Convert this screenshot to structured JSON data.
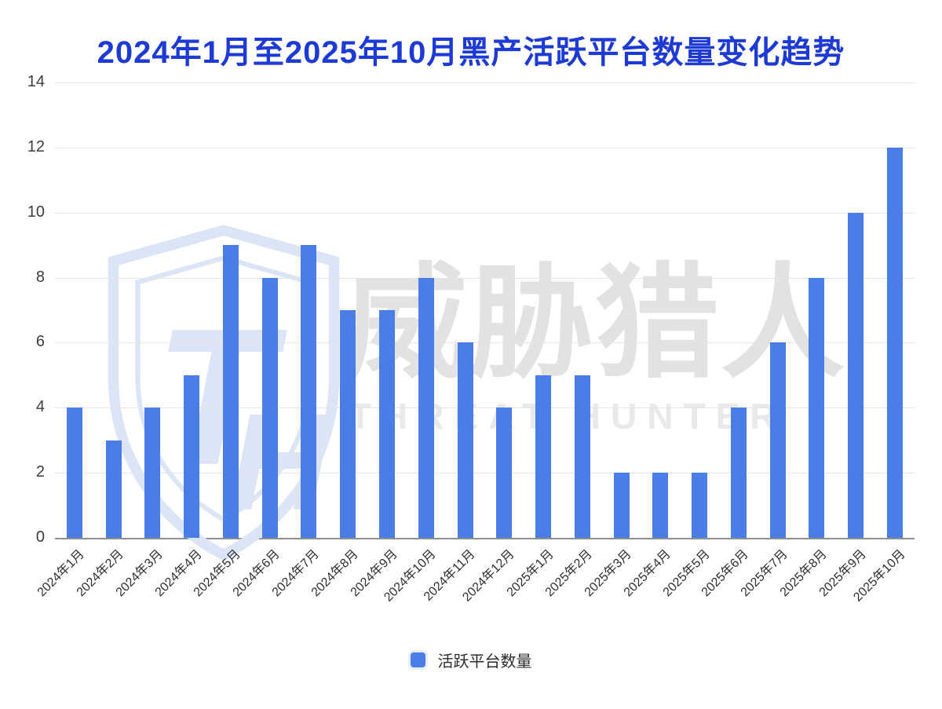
{
  "title": "2024年1月至2025年10月黑产活跃平台数量变化趋势",
  "watermark": {
    "monogram_t": "T",
    "monogram_h": "H",
    "cn_text": "威胁猎人",
    "en_text": "THREAT HUNTER"
  },
  "legend": {
    "label": "活跃平台数量"
  },
  "colors": {
    "bar": "#4b7de6",
    "title": "#1d3ad4",
    "grid_line": "#e5e5e5",
    "axis_line": "#8f8f8f",
    "tick_label": "#3d3d3d",
    "watermark_blue": "#dbe5f6",
    "watermark_gray": "#e2e2e2"
  },
  "chart_data": {
    "type": "bar",
    "title": "2024年1月至2025年10月黑产活跃平台数量变化趋势",
    "categories": [
      "2024年1月",
      "2024年2月",
      "2024年3月",
      "2024年4月",
      "2024年5月",
      "2024年6月",
      "2024年7月",
      "2024年8月",
      "2024年9月",
      "2024年10月",
      "2024年11月",
      "2024年12月",
      "2025年1月",
      "2025年2月",
      "2025年3月",
      "2025年4月",
      "2025年5月",
      "2025年6月",
      "2025年7月",
      "2025年8月",
      "2025年9月",
      "2025年10月"
    ],
    "values": [
      4,
      3,
      4,
      5,
      9,
      8,
      9,
      7,
      7,
      8,
      6,
      4,
      5,
      5,
      2,
      2,
      2,
      4,
      6,
      8,
      10,
      12
    ],
    "series": [
      {
        "name": "活跃平台数量",
        "values": [
          4,
          3,
          4,
          5,
          9,
          8,
          9,
          7,
          7,
          8,
          6,
          4,
          5,
          5,
          2,
          2,
          2,
          4,
          6,
          8,
          10,
          12
        ]
      }
    ],
    "xlabel": "",
    "ylabel": "",
    "ylim": [
      0,
      14
    ],
    "yticks": [
      0,
      2,
      4,
      6,
      8,
      10,
      12,
      14
    ],
    "grid": true,
    "legend_position": "bottom"
  }
}
